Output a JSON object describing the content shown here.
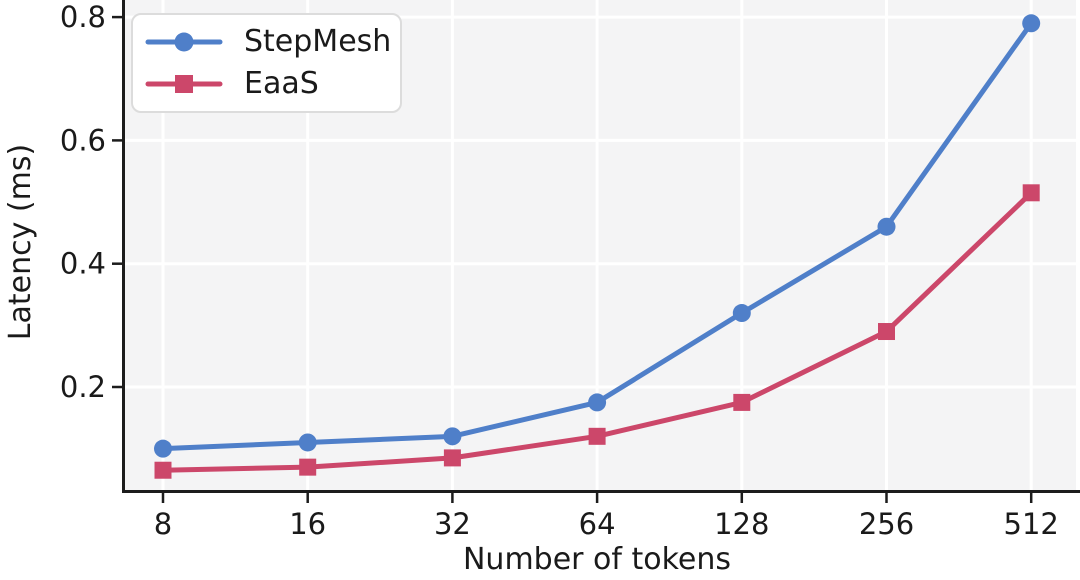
{
  "chart_data": {
    "type": "line",
    "title": "",
    "xlabel": "Number of tokens",
    "ylabel": "Latency (ms)",
    "categories": [
      8,
      16,
      32,
      64,
      128,
      256,
      512
    ],
    "xtick_labels": [
      "8",
      "16",
      "32",
      "64",
      "128",
      "256",
      "512"
    ],
    "yticks": [
      0.2,
      0.4,
      0.6,
      0.8
    ],
    "ytick_labels": [
      "0.2",
      "0.4",
      "0.6",
      "0.8"
    ],
    "ylim": [
      0.028,
      0.828
    ],
    "x_scale": "categorical-log2",
    "grid": true,
    "legend_position": "upper-left",
    "series": [
      {
        "name": "StepMesh",
        "marker": "circle",
        "color": "#4f7fc9",
        "values": [
          0.1,
          0.11,
          0.12,
          0.175,
          0.32,
          0.46,
          0.79
        ]
      },
      {
        "name": "EaaS",
        "marker": "square",
        "color": "#cc476a",
        "values": [
          0.065,
          0.07,
          0.085,
          0.12,
          0.175,
          0.29,
          0.515
        ]
      }
    ],
    "colors": {
      "plot_background": "#f4f4f5",
      "grid_line": "#ffffff",
      "spine": "#1c1c1c",
      "text": "#1a1a1a",
      "legend_border": "#dcdcdc"
    }
  }
}
